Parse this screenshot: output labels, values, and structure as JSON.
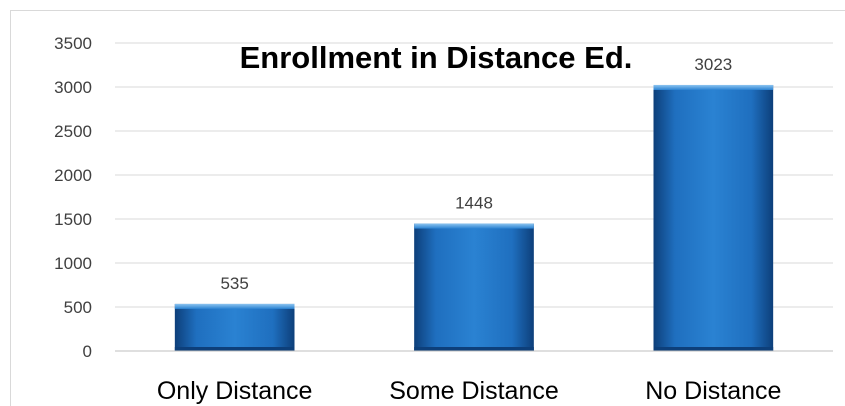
{
  "chart_data": {
    "type": "bar",
    "title": "Enrollment in Distance Ed.",
    "categories": [
      "Only Distance",
      "Some Distance",
      "No Distance"
    ],
    "values": [
      535,
      1448,
      3023
    ],
    "data_labels": [
      "535",
      "1448",
      "3023"
    ],
    "xlabel": "",
    "ylabel": "",
    "ylim": [
      0,
      3500
    ],
    "yticks": [
      0,
      500,
      1000,
      1500,
      2000,
      2500,
      3000,
      3500
    ],
    "ytick_labels": [
      "0",
      "500",
      "1000",
      "1500",
      "2000",
      "2500",
      "3000",
      "3500"
    ],
    "grid": true,
    "legend": "none",
    "bar_color": "#1f6fbf",
    "bar_color_dark": "#0d3f7a",
    "bar_color_light": "#4a98dc"
  }
}
